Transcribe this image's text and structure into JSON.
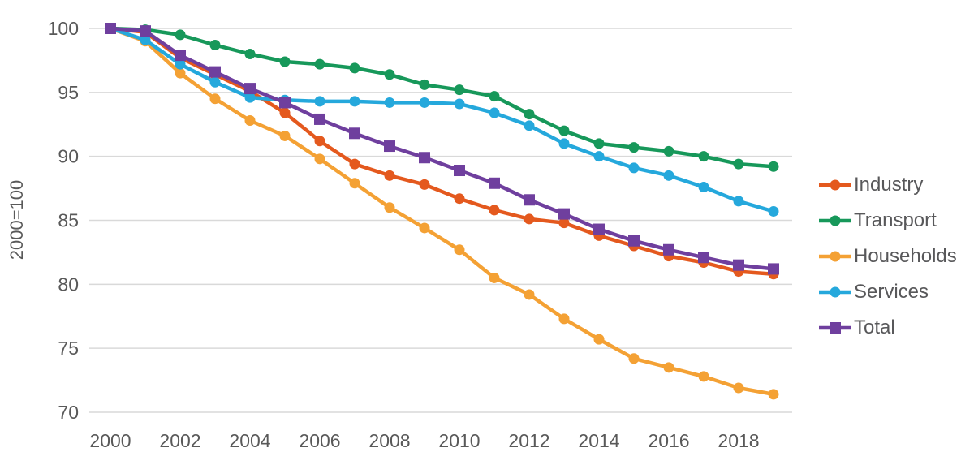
{
  "chart_data": {
    "type": "line",
    "title": "",
    "xlabel": "",
    "ylabel": "2000=100",
    "x": [
      2000,
      2001,
      2002,
      2003,
      2004,
      2005,
      2006,
      2007,
      2008,
      2009,
      2010,
      2011,
      2012,
      2013,
      2014,
      2015,
      2016,
      2017,
      2018,
      2019
    ],
    "x_tick_labels": [
      "2000",
      "2002",
      "2004",
      "2006",
      "2008",
      "2010",
      "2012",
      "2014",
      "2016",
      "2018"
    ],
    "y_ticks": [
      "100",
      "95",
      "90",
      "85",
      "80",
      "75",
      "70"
    ],
    "y_tick_values": [
      100,
      95,
      90,
      85,
      80,
      75,
      70
    ],
    "ylim": [
      70,
      100
    ],
    "grid": "horizontal",
    "legend_position": "right",
    "series": [
      {
        "name": "Industry",
        "color": "#e4591e",
        "marker": "circle",
        "values": [
          100,
          99.7,
          97.7,
          96.4,
          95.1,
          93.4,
          91.2,
          89.4,
          88.5,
          87.8,
          86.7,
          85.8,
          85.1,
          84.8,
          83.8,
          83.0,
          82.2,
          81.7,
          81.0,
          80.8
        ]
      },
      {
        "name": "Transport",
        "color": "#17985a",
        "marker": "circle",
        "values": [
          100,
          99.9,
          99.5,
          98.7,
          98.0,
          97.4,
          97.2,
          96.9,
          96.4,
          95.6,
          95.2,
          94.7,
          93.3,
          92.0,
          91.0,
          90.7,
          90.4,
          90.0,
          89.4,
          89.2
        ]
      },
      {
        "name": "Households",
        "color": "#f4a134",
        "marker": "circle",
        "values": [
          100,
          99.0,
          96.5,
          94.5,
          92.8,
          91.6,
          89.8,
          87.9,
          86.0,
          84.4,
          82.7,
          80.5,
          79.2,
          77.3,
          75.7,
          74.2,
          73.5,
          72.8,
          71.9,
          71.4
        ]
      },
      {
        "name": "Services",
        "color": "#25a8dc",
        "marker": "circle",
        "values": [
          100,
          99.1,
          97.2,
          95.8,
          94.6,
          94.4,
          94.3,
          94.3,
          94.2,
          94.2,
          94.1,
          93.4,
          92.4,
          91.0,
          90.0,
          89.1,
          88.5,
          87.6,
          86.5,
          85.7
        ]
      },
      {
        "name": "Total",
        "color": "#6f3f9e",
        "marker": "square",
        "values": [
          100,
          99.8,
          97.9,
          96.6,
          95.3,
          94.2,
          92.9,
          91.8,
          90.8,
          89.9,
          88.9,
          87.9,
          86.6,
          85.5,
          84.3,
          83.4,
          82.7,
          82.1,
          81.5,
          81.2
        ]
      }
    ]
  },
  "colors": {
    "background": "#ffffff",
    "gridline": "#d9d9d9",
    "tick_text": "#595959",
    "axis_title_text": "#595959",
    "legend_text": "#58585a"
  }
}
